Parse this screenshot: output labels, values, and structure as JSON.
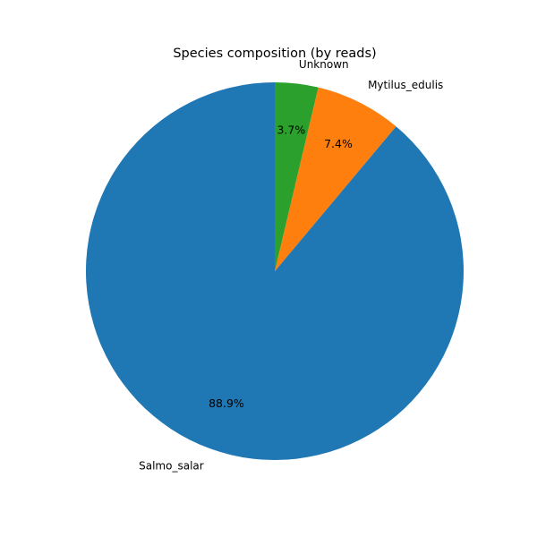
{
  "chart_data": {
    "type": "pie",
    "title": "Species composition (by reads)",
    "slices": [
      {
        "label": "Salmo_salar",
        "value": 88.9,
        "percent_label": "88.9%",
        "color": "#1f77b4"
      },
      {
        "label": "Mytilus_edulis",
        "value": 7.4,
        "percent_label": "7.4%",
        "color": "#ff7f0e"
      },
      {
        "label": "Unknown",
        "value": 3.7,
        "percent_label": "3.7%",
        "color": "#2ca02c"
      }
    ],
    "start_angle_deg": 90,
    "direction": "counterclockwise",
    "legend": "none",
    "grid": false
  }
}
